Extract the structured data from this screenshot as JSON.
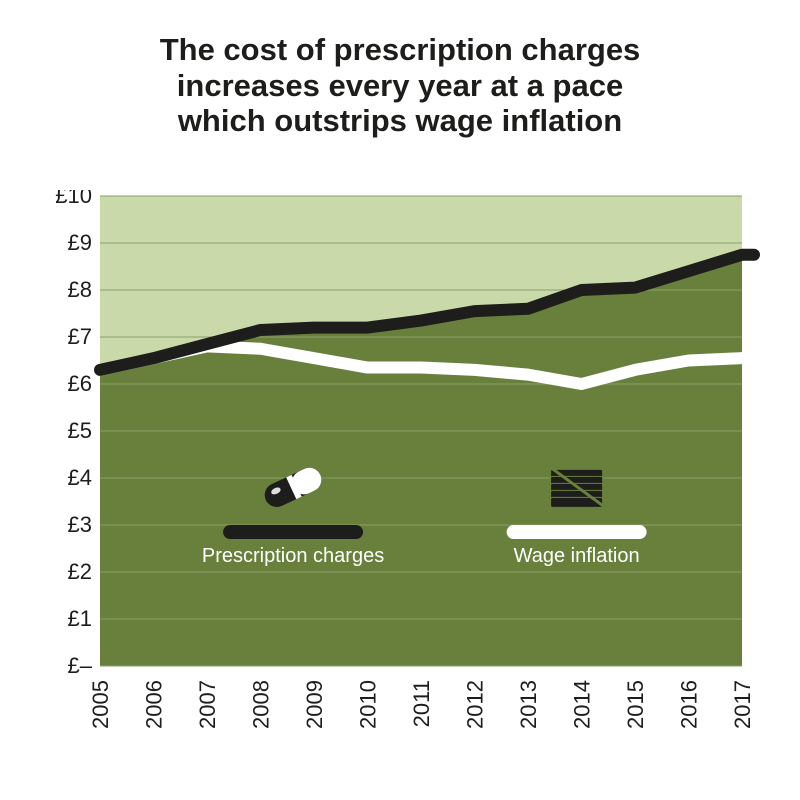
{
  "title": "The cost of prescription charges\nincreases every year at a pace\nwhich outstrips wage inflation",
  "title_fontsize": 31,
  "title_color": "#1d1d1b",
  "chart": {
    "type": "line-area",
    "background_color": "#ffffff",
    "plot_bg_top": "#cad9a9",
    "plot_bg_main": "#68803b",
    "grid_line_color": "#8b9e6a",
    "grid_line_width": 1,
    "y_label_prefix": "£",
    "y_dash": "–",
    "ylim_min": 0,
    "ylim_max": 10,
    "ytick_step": 1,
    "yaxis_fontsize": 22,
    "yaxis_color": "#1d1d1b",
    "x_categories": [
      "2005",
      "2006",
      "2007",
      "2008",
      "2009",
      "2010",
      "2011",
      "2012",
      "2013",
      "2014",
      "2015",
      "2016",
      "2017"
    ],
    "xaxis_fontsize": 22,
    "xaxis_color": "#1d1d1b",
    "series_prescription": {
      "name": "Prescription charges",
      "color": "#1d1d1b",
      "line_width": 12,
      "values": [
        6.3,
        6.55,
        6.85,
        7.15,
        7.2,
        7.2,
        7.35,
        7.55,
        7.6,
        8.0,
        8.05,
        8.4,
        8.75
      ]
    },
    "series_wage": {
      "name": "Wage inflation",
      "color": "#ffffff",
      "line_width": 12,
      "values": [
        6.3,
        6.55,
        6.8,
        6.75,
        6.55,
        6.35,
        6.35,
        6.3,
        6.2,
        6.0,
        6.3,
        6.5,
        6.55
      ]
    },
    "legend": {
      "fontsize": 20,
      "label_color": "#ffffff",
      "swatch_height": 14,
      "swatch_width": 140,
      "swatch_radius": 7
    }
  }
}
